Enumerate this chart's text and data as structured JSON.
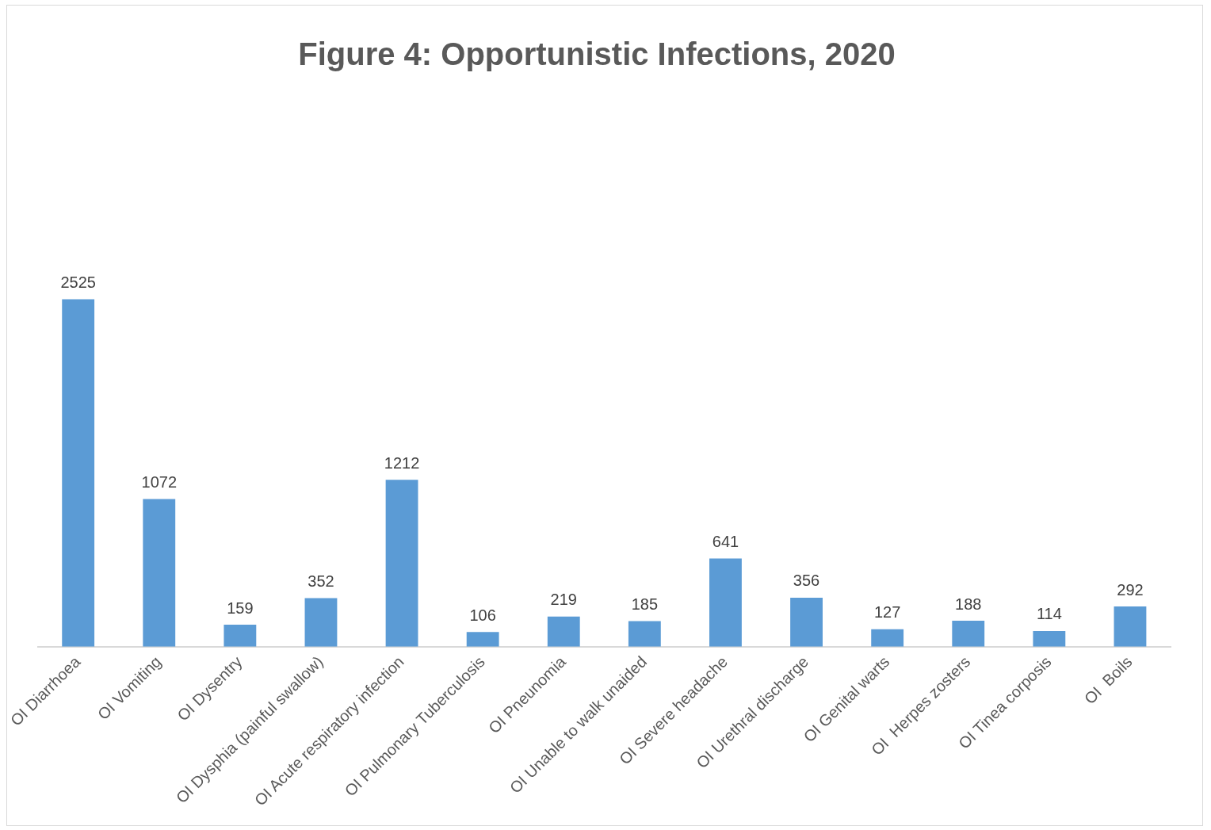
{
  "chart_data": {
    "type": "bar",
    "title": "Figure 4: Opportunistic Infections, 2020",
    "categories": [
      "OI Diarrhoea",
      "OI Vomiting",
      "OI Dysentry",
      "OI Dysphia (painful swallow)",
      "OI Acute respiratory infection",
      "OI Pulmonary Tuberculosis",
      "OI Pneunomia",
      "OI Unable to walk unaided",
      "OI Severe headache",
      "OI Urethral discharge",
      "OI Genital warts",
      "OI  Herpes zosters",
      "OI Tinea corposis",
      "OI  Boils"
    ],
    "values": [
      2525,
      1072,
      159,
      352,
      1212,
      106,
      219,
      185,
      641,
      356,
      127,
      188,
      114,
      292
    ],
    "color": "#5b9bd5",
    "data_labels": true,
    "grid": false,
    "legend": false
  }
}
